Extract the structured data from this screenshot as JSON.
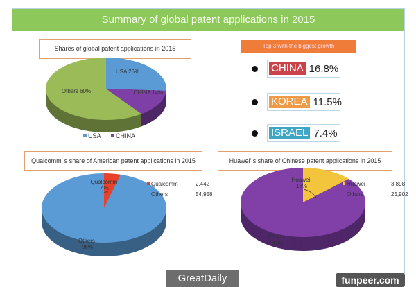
{
  "title": "Summary of global patent applications in 2015",
  "growth": {
    "title": "Top 3 with the biggest growth",
    "items": [
      {
        "country": "CHINA",
        "value": "16.8%",
        "color": "#c9444a"
      },
      {
        "country": "KOREA",
        "value": "11.5%",
        "color": "#ef9a46"
      },
      {
        "country": "ISRAEL",
        "value": "7.4%",
        "color": "#3fa6c6"
      }
    ]
  },
  "chart_data": [
    {
      "type": "pie",
      "title": "Shares of global patent applications in 2015",
      "slices": [
        {
          "name": "USA",
          "value": 26,
          "label": "USA 26%",
          "color": "#5b9bd5"
        },
        {
          "name": "CHINA",
          "value": 14,
          "label": "CHINA 14%",
          "color": "#7e3fa6"
        },
        {
          "name": "Others",
          "value": 60,
          "label": "Others 60%",
          "color": "#9bbb59"
        }
      ],
      "legend": [
        "USA",
        "CHINA"
      ],
      "legend_placement": "bottom"
    },
    {
      "type": "pie",
      "title": "Qualcomm’ s share of American patent applications in 2015",
      "slices": [
        {
          "name": "Qualcomm",
          "value": 2442,
          "label": "Qualcomm 4%",
          "color": "#e8412c"
        },
        {
          "name": "Others",
          "value": 54958,
          "label": "Others 96%",
          "color": "#5b9bd5"
        }
      ],
      "legend": [
        {
          "name": "Qualcomm",
          "value": "2,442"
        },
        {
          "name": "Others",
          "value": "54,958"
        }
      ],
      "legend_placement": "top-right"
    },
    {
      "type": "pie",
      "title": "Huawei’ s share of Chinese patent applications in 2015",
      "slices": [
        {
          "name": "Huawei",
          "value": 3898,
          "label": "Huawei 13%",
          "color": "#f2c53d"
        },
        {
          "name": "Others",
          "value": 25902,
          "label": "Others 87%",
          "color": "#8040a8"
        }
      ],
      "legend": [
        {
          "name": "Huawei",
          "value": "3,898"
        },
        {
          "name": "Others",
          "value": "25,902"
        }
      ],
      "legend_placement": "top-right"
    }
  ],
  "watermarks": [
    "GreatDaily",
    "funpeer.com"
  ]
}
